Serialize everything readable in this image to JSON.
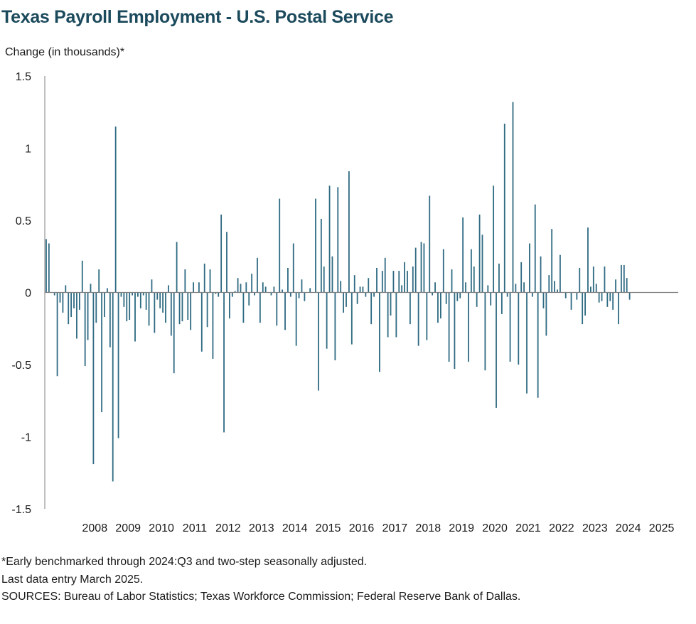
{
  "title": "Texas Payroll Employment - U.S. Postal Service",
  "notes": [
    "*Early benchmarked through 2024:Q3 and two-step seasonally adjusted.",
    "Last data entry March 2025.",
    "SOURCES:  Bureau of Labor Statistics; Texas Workforce Commission;  Federal Reserve Bank of Dallas."
  ],
  "colors": {
    "bar": "#2e6a82",
    "axis": "#7f7f7f",
    "title": "#1b4a5c"
  },
  "chart_data": {
    "type": "bar",
    "title": "Texas Payroll Employment - U.S. Postal Service",
    "ylabel": "Change (in thousands)*",
    "xlabel": "",
    "ylim": [
      -1.5,
      1.5
    ],
    "yticks": [
      1.5,
      1,
      0.5,
      0,
      -0.5,
      -1,
      -1.5
    ],
    "ytick_labels": [
      "1.5",
      "1",
      "0.5",
      "0",
      "-0.5",
      "-1",
      "-1.5"
    ],
    "xtick_labels": [
      "2008",
      "2009",
      "2010",
      "2011",
      "2012",
      "2013",
      "2014",
      "2015",
      "2016",
      "2017",
      "2018",
      "2019",
      "2020",
      "2021",
      "2022",
      "2023",
      "2024",
      "2025"
    ],
    "start": "2007-01",
    "frequency": "monthly",
    "series": [
      {
        "values": [
          0.37,
          0.34,
          0.0,
          -0.02,
          -0.58,
          -0.07,
          -0.14,
          0.05,
          -0.22,
          -0.17,
          -0.11,
          -0.32,
          -0.12,
          0.22,
          -0.51,
          -0.33,
          0.06,
          -1.19,
          -0.21,
          0.16,
          -0.83,
          -0.17,
          0.03,
          -0.38,
          -1.31,
          1.15,
          -1.01,
          -0.03,
          -0.1,
          -0.2,
          -0.19,
          -0.02,
          -0.34,
          -0.03,
          -0.11,
          -0.02,
          -0.12,
          -0.23,
          0.09,
          -0.28,
          -0.05,
          -0.11,
          -0.14,
          -0.21,
          0.05,
          -0.3,
          -0.56,
          0.35,
          -0.22,
          -0.2,
          0.16,
          -0.19,
          -0.26,
          0.07,
          0.0,
          0.07,
          -0.41,
          0.2,
          -0.24,
          0.16,
          -0.46,
          -0.01,
          -0.03,
          0.54,
          -0.97,
          0.42,
          -0.18,
          -0.03,
          0.01,
          0.1,
          0.06,
          -0.21,
          0.07,
          -0.09,
          0.13,
          -0.02,
          0.24,
          -0.21,
          0.07,
          0.04,
          0.0,
          -0.02,
          0.04,
          -0.23,
          0.65,
          0.02,
          -0.26,
          0.17,
          -0.03,
          0.34,
          -0.37,
          -0.04,
          0.09,
          -0.06,
          0.0,
          0.03,
          0.0,
          0.65,
          -0.68,
          0.51,
          0.18,
          -0.39,
          0.74,
          0.25,
          -0.47,
          0.73,
          0.08,
          -0.14,
          -0.1,
          0.84,
          -0.36,
          0.12,
          -0.08,
          0.04,
          0.04,
          -0.03,
          0.1,
          -0.22,
          -0.03,
          0.17,
          -0.55,
          0.15,
          0.24,
          -0.31,
          -0.16,
          0.15,
          -0.31,
          0.15,
          0.05,
          0.21,
          0.15,
          -0.22,
          0.18,
          0.31,
          -0.37,
          0.35,
          0.34,
          -0.33,
          0.67,
          -0.02,
          0.07,
          -0.21,
          -0.18,
          0.3,
          -0.08,
          -0.48,
          0.16,
          -0.53,
          -0.06,
          -0.04,
          0.52,
          0.07,
          -0.48,
          0.3,
          0.18,
          -0.1,
          0.54,
          0.4,
          -0.54,
          0.05,
          -0.09,
          0.74,
          -0.8,
          0.2,
          -0.15,
          1.17,
          -0.03,
          -0.48,
          1.32,
          0.06,
          -0.5,
          0.21,
          0.07,
          -0.7,
          0.34,
          -0.03,
          0.61,
          -0.73,
          0.25,
          -0.11,
          -0.3,
          0.12,
          0.44,
          0.08,
          0.02,
          0.26,
          0.0,
          -0.04,
          0.0,
          -0.12,
          0.0,
          -0.05,
          0.17,
          -0.22,
          -0.16,
          0.45,
          0.04,
          0.18,
          0.06,
          -0.07,
          -0.06,
          0.18,
          -0.1,
          -0.06,
          -0.12,
          0.09,
          -0.22,
          0.19,
          0.19,
          0.1,
          -0.05
        ]
      }
    ],
    "grid": false,
    "legend": "none"
  }
}
